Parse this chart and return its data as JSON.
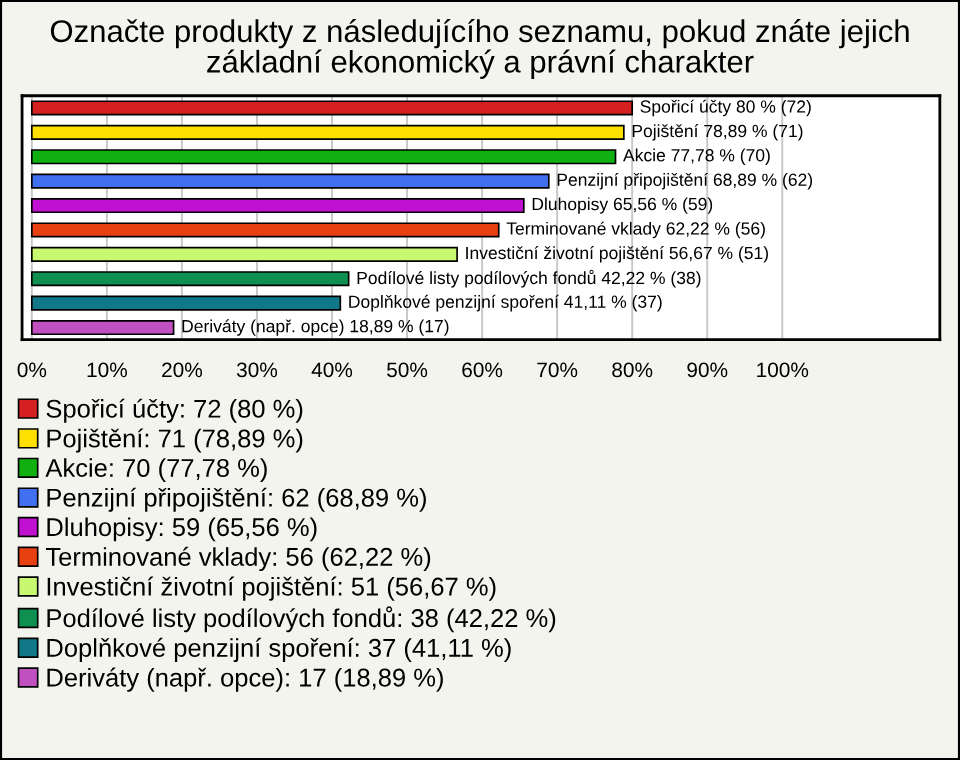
{
  "chart_data": {
    "type": "bar",
    "orientation": "horizontal",
    "title": "Označte produkty z následujícího seznamu, pokud znáte jejich základní ekonomický a právní charakter",
    "categories": [
      null,
      null,
      null,
      null,
      null,
      null,
      null,
      null,
      null,
      null
    ],
    "series": [
      {
        "name": "Spořicí účty: 72 (80 %)",
        "color": "#d42020",
        "values": [
          80,
          null,
          null,
          null,
          null,
          null,
          null,
          null,
          null,
          null
        ],
        "value_labels": [
          "Spořicí účty 80 % (72)",
          null,
          null,
          null,
          null,
          null,
          null,
          null,
          null,
          null
        ]
      },
      {
        "name": "Pojištění: 71 (78,89 %)",
        "color": "#ffe000",
        "values": [
          null,
          78.89,
          null,
          null,
          null,
          null,
          null,
          null,
          null,
          null
        ],
        "value_labels": [
          null,
          "Pojištění 78,89 % (71)",
          null,
          null,
          null,
          null,
          null,
          null,
          null,
          null
        ]
      },
      {
        "name": "Akcie: 70 (77,78 %)",
        "color": "#10b010",
        "values": [
          null,
          null,
          77.78,
          null,
          null,
          null,
          null,
          null,
          null,
          null
        ],
        "value_labels": [
          null,
          null,
          "Akcie 77,78 % (70)",
          null,
          null,
          null,
          null,
          null,
          null,
          null
        ]
      },
      {
        "name": "Penzijní připojištění: 62 (68,89 %)",
        "color": "#4070f0",
        "values": [
          null,
          null,
          null,
          68.89,
          null,
          null,
          null,
          null,
          null,
          null
        ],
        "value_labels": [
          null,
          null,
          null,
          "Penzijní připojištění 68,89 % (62)",
          null,
          null,
          null,
          null,
          null,
          null
        ]
      },
      {
        "name": "Dluhopisy: 59 (65,56 %)",
        "color": "#c010d0",
        "values": [
          null,
          null,
          null,
          null,
          65.56,
          null,
          null,
          null,
          null,
          null
        ],
        "value_labels": [
          null,
          null,
          null,
          null,
          "Dluhopisy 65,56 % (59)",
          null,
          null,
          null,
          null,
          null
        ]
      },
      {
        "name": "Terminované vklady: 56 (62,22 %)",
        "color": "#e84010",
        "values": [
          null,
          null,
          null,
          null,
          null,
          62.22,
          null,
          null,
          null,
          null
        ],
        "value_labels": [
          null,
          null,
          null,
          null,
          null,
          "Terminované vklady 62,22 % (56)",
          null,
          null,
          null,
          null
        ]
      },
      {
        "name": "Investiční životní pojištění: 51 (56,67 %)",
        "color": "#c8f870",
        "values": [
          null,
          null,
          null,
          null,
          null,
          null,
          56.67,
          null,
          null,
          null
        ],
        "value_labels": [
          null,
          null,
          null,
          null,
          null,
          null,
          "Investiční životní pojištění 56,67 % (51)",
          null,
          null,
          null
        ]
      },
      {
        "name": "Podílové listy podílových fondů: 38 (42,22 %)",
        "color": "#109050",
        "values": [
          null,
          null,
          null,
          null,
          null,
          null,
          null,
          42.22,
          null,
          null
        ],
        "value_labels": [
          null,
          null,
          null,
          null,
          null,
          null,
          null,
          "Podílové listy podílových fondů 42,22 % (38)",
          null,
          null
        ]
      },
      {
        "name": "Doplňkové penzijní spoření: 37 (41,11 %)",
        "color": "#107888",
        "values": [
          null,
          null,
          null,
          null,
          null,
          null,
          null,
          null,
          41.11,
          null
        ],
        "value_labels": [
          null,
          null,
          null,
          null,
          null,
          null,
          null,
          null,
          "Doplňkové penzijní spoření 41,11 % (37)",
          null
        ]
      },
      {
        "name": "Deriváty (např. opce): 17 (18,89 %)",
        "color": "#c050c0",
        "values": [
          null,
          null,
          null,
          null,
          null,
          null,
          null,
          null,
          null,
          18.89
        ],
        "value_labels": [
          null,
          null,
          null,
          null,
          null,
          null,
          null,
          null,
          null,
          "Deriváty (např. opce) 18,89 % (17)"
        ]
      }
    ],
    "xlim": [
      -1.3,
      121
    ],
    "xticks": [
      {
        "value": 0,
        "label": "0%"
      },
      {
        "value": 10,
        "label": "10%"
      },
      {
        "value": 20,
        "label": "20%"
      },
      {
        "value": 30,
        "label": "30%"
      },
      {
        "value": 40,
        "label": "40%"
      },
      {
        "value": 50,
        "label": "50%"
      },
      {
        "value": 60,
        "label": "60%"
      },
      {
        "value": 70,
        "label": "70%"
      },
      {
        "value": 80,
        "label": "80%"
      },
      {
        "value": 90,
        "label": "90%"
      },
      {
        "value": 100,
        "label": "100%"
      }
    ],
    "grid": "x",
    "legend": "bottom",
    "tick_labels": "x"
  }
}
